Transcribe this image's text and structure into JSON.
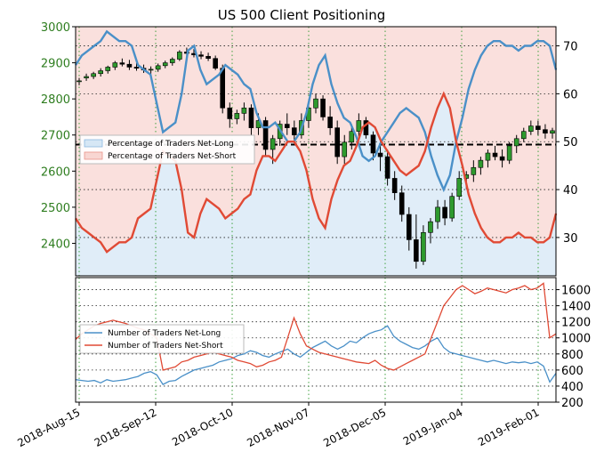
{
  "chart_data": [
    {
      "type": "line",
      "title": "US 500 Client Positioning",
      "y_left": {
        "ticks": [
          2400,
          2500,
          2600,
          2700,
          2800,
          2900,
          3000
        ],
        "range": [
          2310,
          3000
        ],
        "color": "#2e7d1f"
      },
      "y_right": {
        "ticks": [
          30,
          40,
          50,
          60,
          70
        ],
        "range": [
          22,
          74
        ]
      },
      "reference_line": 49.4,
      "grid": true,
      "legend_position": "center-left",
      "legend": [
        "Percentage of Traders Net-Long",
        "Percentage of Traders Net-Short"
      ],
      "colors": {
        "net_long": "#4a90c8",
        "net_short": "#e04a35",
        "long_fill": "#d6e7f5",
        "short_fill": "#f8d6d2",
        "candle": "#000000"
      },
      "net_short_pct": [
        34,
        32,
        31,
        30,
        29,
        27,
        28,
        29,
        29,
        30,
        34,
        35,
        36,
        42,
        48,
        47,
        46,
        40,
        31,
        30,
        35,
        38,
        37,
        36,
        34,
        35,
        36,
        38,
        39,
        44,
        47,
        47,
        46,
        48,
        50,
        50,
        48,
        44,
        38,
        34,
        32,
        38,
        42,
        45,
        46,
        49,
        53,
        54,
        53,
        50,
        48,
        46,
        44,
        43,
        44,
        45,
        48,
        53,
        57,
        60,
        57,
        50,
        45,
        39,
        35,
        32,
        30,
        29,
        29,
        30,
        30,
        31,
        30,
        30,
        29,
        29,
        30,
        35
      ],
      "price_ohlc_sampled": [
        [
          2850,
          2858,
          2838,
          2850
        ],
        [
          2858,
          2870,
          2850,
          2862
        ],
        [
          2862,
          2875,
          2855,
          2870
        ],
        [
          2870,
          2885,
          2862,
          2878
        ],
        [
          2878,
          2892,
          2870,
          2888
        ],
        [
          2888,
          2905,
          2880,
          2900
        ],
        [
          2900,
          2912,
          2890,
          2896
        ],
        [
          2896,
          2908,
          2880,
          2888
        ],
        [
          2888,
          2900,
          2878,
          2885
        ],
        [
          2885,
          2895,
          2872,
          2880
        ],
        [
          2880,
          2890,
          2870,
          2882
        ],
        [
          2882,
          2898,
          2875,
          2892
        ],
        [
          2892,
          2906,
          2885,
          2900
        ],
        [
          2900,
          2915,
          2892,
          2910
        ],
        [
          2910,
          2935,
          2905,
          2930
        ],
        [
          2930,
          2942,
          2920,
          2926
        ],
        [
          2926,
          2938,
          2915,
          2922
        ],
        [
          2922,
          2932,
          2910,
          2918
        ],
        [
          2918,
          2928,
          2905,
          2912
        ],
        [
          2912,
          2920,
          2880,
          2885
        ],
        [
          2885,
          2895,
          2760,
          2775
        ],
        [
          2775,
          2790,
          2720,
          2745
        ],
        [
          2745,
          2770,
          2730,
          2760
        ],
        [
          2760,
          2790,
          2740,
          2775
        ],
        [
          2775,
          2785,
          2700,
          2720
        ],
        [
          2720,
          2760,
          2700,
          2740
        ],
        [
          2740,
          2750,
          2640,
          2660
        ],
        [
          2660,
          2700,
          2620,
          2690
        ],
        [
          2690,
          2740,
          2670,
          2730
        ],
        [
          2730,
          2760,
          2700,
          2720
        ],
        [
          2720,
          2740,
          2680,
          2700
        ],
        [
          2700,
          2760,
          2690,
          2740
        ],
        [
          2740,
          2790,
          2720,
          2775
        ],
        [
          2775,
          2815,
          2760,
          2800
        ],
        [
          2800,
          2810,
          2740,
          2750
        ],
        [
          2750,
          2780,
          2700,
          2720
        ],
        [
          2720,
          2740,
          2620,
          2640
        ],
        [
          2640,
          2700,
          2620,
          2680
        ],
        [
          2680,
          2730,
          2660,
          2710
        ],
        [
          2710,
          2760,
          2690,
          2740
        ],
        [
          2740,
          2750,
          2690,
          2700
        ],
        [
          2700,
          2710,
          2630,
          2650
        ],
        [
          2650,
          2680,
          2600,
          2640
        ],
        [
          2640,
          2660,
          2560,
          2580
        ],
        [
          2580,
          2600,
          2520,
          2540
        ],
        [
          2540,
          2560,
          2460,
          2480
        ],
        [
          2480,
          2500,
          2380,
          2410
        ],
        [
          2410,
          2480,
          2330,
          2350
        ],
        [
          2350,
          2450,
          2340,
          2430
        ],
        [
          2430,
          2470,
          2400,
          2460
        ],
        [
          2460,
          2520,
          2440,
          2500
        ],
        [
          2500,
          2520,
          2450,
          2470
        ],
        [
          2470,
          2540,
          2460,
          2530
        ],
        [
          2530,
          2600,
          2520,
          2580
        ],
        [
          2580,
          2600,
          2550,
          2590
        ],
        [
          2590,
          2630,
          2570,
          2610
        ],
        [
          2610,
          2640,
          2590,
          2630
        ],
        [
          2630,
          2660,
          2610,
          2650
        ],
        [
          2650,
          2670,
          2630,
          2640
        ],
        [
          2640,
          2660,
          2610,
          2630
        ],
        [
          2630,
          2680,
          2620,
          2670
        ],
        [
          2670,
          2700,
          2650,
          2690
        ],
        [
          2690,
          2720,
          2680,
          2710
        ],
        [
          2710,
          2740,
          2700,
          2725
        ],
        [
          2725,
          2740,
          2700,
          2715
        ],
        [
          2715,
          2730,
          2690,
          2705
        ],
        [
          2705,
          2720,
          2690,
          2712
        ]
      ]
    },
    {
      "type": "line",
      "y_right": {
        "ticks": [
          200,
          400,
          600,
          800,
          1000,
          1200,
          1400,
          1600
        ],
        "range": [
          200,
          1750
        ]
      },
      "grid": true,
      "legend_position": "center-left",
      "x_ticks": [
        "2018-Aug-15",
        "2018-Sep-12",
        "2018-Oct-10",
        "2018-Nov-07",
        "2018-Dec-05",
        "2019-Jan-04",
        "2019-Feb-01"
      ],
      "series": [
        {
          "name": "Number of Traders Net-Long",
          "color": "#4a90c8",
          "values": [
            480,
            470,
            460,
            470,
            440,
            480,
            460,
            470,
            480,
            500,
            520,
            560,
            580,
            540,
            420,
            460,
            470,
            520,
            560,
            600,
            620,
            640,
            660,
            700,
            720,
            740,
            780,
            800,
            840,
            820,
            780,
            760,
            800,
            830,
            860,
            800,
            760,
            820,
            880,
            920,
            960,
            900,
            860,
            900,
            960,
            940,
            1000,
            1050,
            1080,
            1100,
            1150,
            1020,
            960,
            920,
            880,
            860,
            900,
            960,
            1000,
            880,
            820,
            800,
            780,
            760,
            740,
            720,
            700,
            720,
            700,
            680,
            700,
            690,
            700,
            680,
            700,
            650,
            450,
            560
          ]
        },
        {
          "name": "Number of Traders Net-Short",
          "color": "#e04a35",
          "values": [
            980,
            1050,
            1100,
            1150,
            1180,
            1200,
            1220,
            1200,
            1180,
            1150,
            1120,
            1100,
            1050,
            1000,
            600,
            620,
            640,
            700,
            720,
            760,
            780,
            800,
            820,
            800,
            780,
            760,
            720,
            700,
            680,
            640,
            660,
            700,
            720,
            760,
            1000,
            1250,
            1050,
            900,
            860,
            820,
            800,
            780,
            760,
            740,
            720,
            700,
            690,
            680,
            720,
            660,
            620,
            600,
            640,
            680,
            720,
            760,
            800,
            1000,
            1200,
            1400,
            1500,
            1600,
            1650,
            1600,
            1550,
            1580,
            1620,
            1600,
            1580,
            1560,
            1600,
            1620,
            1650,
            1600,
            1620,
            1680,
            1000,
            1050
          ]
        }
      ]
    }
  ]
}
